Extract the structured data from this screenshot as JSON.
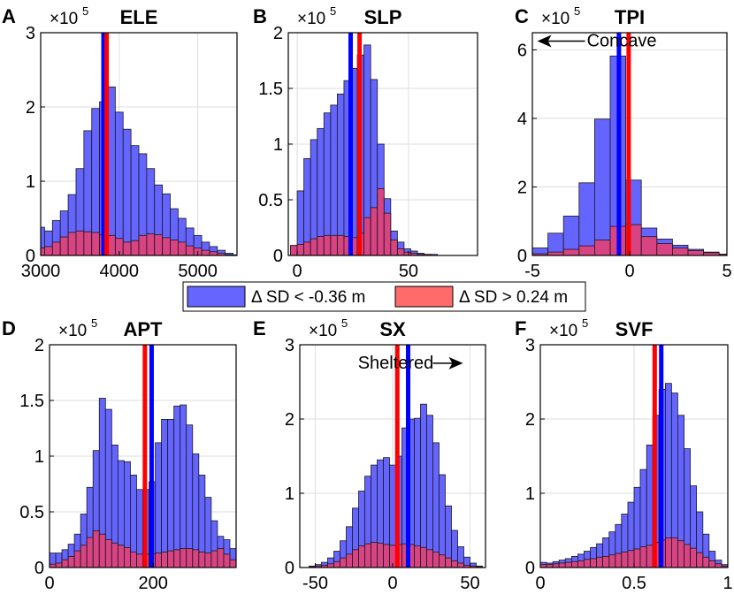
{
  "legend": {
    "entries": [
      {
        "label": "Δ SD < -0.36 m",
        "color": "#6666ff"
      },
      {
        "label": "Δ SD > 0.24 m",
        "color": "#ff6a6a"
      }
    ]
  },
  "colors": {
    "blue_fill": "#6464ff",
    "red_fill": "#f03c68",
    "blue_line": "#0000ff",
    "red_line": "#ff0000",
    "grid": "#dedede"
  },
  "chart_data": [
    {
      "type": "bar",
      "panel_letter": "A",
      "title": "ELE",
      "multiplier": "×10",
      "exponent": "5",
      "xlim": [
        3000,
        5500
      ],
      "ylim": [
        0,
        3
      ],
      "xticks": [
        3000,
        4000,
        5000
      ],
      "yticks": [
        0,
        1,
        2,
        3
      ],
      "xtick_labels": [
        "3000",
        "4000",
        "5000"
      ],
      "ytick_labels": [
        "0",
        "1",
        "2",
        "3"
      ],
      "bin_edges": [
        2950,
        3050,
        3150,
        3250,
        3350,
        3450,
        3550,
        3650,
        3750,
        3850,
        3950,
        4050,
        4150,
        4250,
        4350,
        4450,
        4550,
        4650,
        4750,
        4850,
        4950,
        5050,
        5150,
        5250,
        5350,
        5450,
        5550
      ],
      "series": [
        {
          "name": "Δ SD < -0.36 m",
          "values": [
            0.38,
            0.33,
            0.47,
            0.6,
            0.82,
            1.17,
            1.68,
            1.98,
            2.07,
            2.27,
            1.93,
            1.7,
            1.48,
            1.37,
            1.17,
            0.95,
            0.83,
            0.63,
            0.5,
            0.37,
            0.27,
            0.18,
            0.12,
            0.07,
            0.03,
            0.01
          ]
        },
        {
          "name": "Δ SD > 0.24 m",
          "values": [
            0.1,
            0.12,
            0.18,
            0.25,
            0.31,
            0.33,
            0.32,
            0.31,
            0.28,
            0.27,
            0.23,
            0.18,
            0.2,
            0.27,
            0.29,
            0.28,
            0.24,
            0.21,
            0.18,
            0.13,
            0.1,
            0.07,
            0.05,
            0.03,
            0.01,
            0.0
          ]
        }
      ],
      "lines": [
        {
          "x": 3800,
          "color": "blue"
        },
        {
          "x": 3840,
          "color": "red"
        }
      ],
      "annotation": null
    },
    {
      "type": "bar",
      "panel_letter": "B",
      "title": "SLP",
      "multiplier": "×10",
      "exponent": "5",
      "xlim": [
        -4,
        81
      ],
      "ylim": [
        0,
        2
      ],
      "xticks": [
        0,
        50
      ],
      "yticks": [
        0,
        0.5,
        1,
        1.5,
        2
      ],
      "xtick_labels": [
        "0",
        "50"
      ],
      "ytick_labels": [
        "0",
        "0.5",
        "1",
        "1.5",
        "2"
      ],
      "bin_edges": [
        -3,
        0,
        3,
        6,
        9,
        12,
        15,
        18,
        21,
        24,
        27,
        30,
        33,
        36,
        39,
        42,
        45,
        48,
        51,
        54,
        57,
        60,
        63,
        66,
        69,
        72
      ],
      "series": [
        {
          "name": "Δ SD < -0.36 m",
          "values": [
            0.09,
            0.58,
            0.87,
            1.04,
            1.14,
            1.28,
            1.35,
            1.45,
            1.57,
            1.68,
            1.8,
            1.89,
            1.58,
            1.0,
            0.51,
            0.22,
            0.12,
            0.06,
            0.04,
            0.02,
            0.01,
            0.01,
            0.0,
            0.0,
            0.0
          ]
        },
        {
          "name": "Δ SD > 0.24 m",
          "values": [
            0.09,
            0.1,
            0.12,
            0.15,
            0.17,
            0.18,
            0.18,
            0.18,
            0.17,
            0.16,
            0.2,
            0.34,
            0.43,
            0.6,
            0.38,
            0.14,
            0.06,
            0.03,
            0.02,
            0.01,
            0.01,
            0.0,
            0.0,
            0.0,
            0.0
          ]
        }
      ],
      "lines": [
        {
          "x": 24,
          "color": "blue"
        },
        {
          "x": 28,
          "color": "red"
        }
      ],
      "annotation": null
    },
    {
      "type": "bar",
      "panel_letter": "C",
      "title": "TPI",
      "multiplier": "×10",
      "exponent": "5",
      "xlim": [
        -5,
        5
      ],
      "ylim": [
        0,
        6.5
      ],
      "xticks": [
        -5,
        0,
        5
      ],
      "yticks": [
        0,
        2,
        4,
        6
      ],
      "xtick_labels": [
        "-5",
        "0",
        "5"
      ],
      "ytick_labels": [
        "0",
        "2",
        "4",
        "6"
      ],
      "bin_edges": [
        -5,
        -4.2,
        -3.4,
        -2.6,
        -1.8,
        -1.0,
        -0.2,
        0.6,
        1.4,
        2.2,
        3.0,
        3.8,
        4.6,
        5.0
      ],
      "series": [
        {
          "name": "Δ SD < -0.36 m",
          "values": [
            0.22,
            0.65,
            1.15,
            2.12,
            3.98,
            5.82,
            2.2,
            0.8,
            0.48,
            0.3,
            0.18,
            0.1,
            0.04
          ]
        },
        {
          "name": "Δ SD > 0.24 m",
          "values": [
            0.05,
            0.1,
            0.18,
            0.28,
            0.45,
            0.85,
            0.9,
            0.55,
            0.35,
            0.22,
            0.14,
            0.08,
            0.03
          ]
        }
      ],
      "lines": [
        {
          "x": -0.55,
          "color": "blue"
        },
        {
          "x": -0.05,
          "color": "red"
        }
      ],
      "annotation": {
        "text": "Concave",
        "arrow": "left",
        "x": -2.2,
        "y": 6.1
      }
    },
    {
      "type": "bar",
      "panel_letter": "D",
      "title": "APT",
      "multiplier": "×10",
      "exponent": "5",
      "xlim": [
        0,
        360
      ],
      "ylim": [
        0,
        2
      ],
      "xticks": [
        0,
        200
      ],
      "yticks": [
        0,
        0.5,
        1,
        1.5,
        2
      ],
      "xtick_labels": [
        "0",
        "200"
      ],
      "ytick_labels": [
        "0",
        "0.5",
        "1",
        "1.5",
        "2"
      ],
      "bin_edges": [
        0,
        12,
        24,
        36,
        48,
        60,
        72,
        84,
        96,
        108,
        120,
        132,
        144,
        156,
        168,
        180,
        192,
        204,
        216,
        228,
        240,
        252,
        264,
        276,
        288,
        300,
        312,
        324,
        336,
        348,
        360
      ],
      "series": [
        {
          "name": "Δ SD < -0.36 m",
          "values": [
            0.13,
            0.13,
            0.16,
            0.21,
            0.3,
            0.48,
            0.72,
            1.05,
            1.52,
            1.42,
            1.1,
            0.96,
            0.95,
            0.83,
            0.7,
            0.7,
            0.77,
            1.12,
            1.33,
            1.33,
            1.45,
            1.46,
            1.28,
            1.02,
            0.83,
            0.63,
            0.42,
            0.28,
            0.25,
            0.17
          ]
        },
        {
          "name": "Δ SD > 0.24 m",
          "values": [
            0.03,
            0.04,
            0.07,
            0.1,
            0.15,
            0.2,
            0.27,
            0.33,
            0.3,
            0.25,
            0.22,
            0.2,
            0.18,
            0.14,
            0.12,
            0.12,
            0.12,
            0.13,
            0.14,
            0.15,
            0.16,
            0.17,
            0.17,
            0.16,
            0.14,
            0.13,
            0.15,
            0.17,
            0.12,
            0.07
          ]
        }
      ],
      "lines": [
        {
          "x": 184,
          "color": "red"
        },
        {
          "x": 197,
          "color": "blue"
        }
      ],
      "annotation": null
    },
    {
      "type": "bar",
      "panel_letter": "E",
      "title": "SX",
      "multiplier": "×10",
      "exponent": "5",
      "xlim": [
        -60,
        60
      ],
      "ylim": [
        0,
        3
      ],
      "xticks": [
        -50,
        0,
        50
      ],
      "yticks": [
        0,
        1,
        2,
        3
      ],
      "xtick_labels": [
        "-50",
        "0",
        "50"
      ],
      "ytick_labels": [
        "0",
        "1",
        "2",
        "3"
      ],
      "bin_edges": [
        -54,
        -50,
        -46,
        -42,
        -38,
        -34,
        -30,
        -26,
        -22,
        -18,
        -14,
        -10,
        -6,
        -2,
        2,
        6,
        10,
        14,
        18,
        22,
        26,
        30,
        34,
        38,
        42,
        46,
        50,
        54,
        58
      ],
      "series": [
        {
          "name": "Δ SD < -0.36 m",
          "values": [
            0.02,
            0.04,
            0.07,
            0.13,
            0.22,
            0.36,
            0.55,
            0.8,
            1.03,
            1.23,
            1.38,
            1.45,
            1.48,
            1.38,
            1.5,
            1.88,
            2.0,
            2.01,
            2.2,
            2.05,
            1.68,
            1.25,
            0.83,
            0.5,
            0.28,
            0.14,
            0.06,
            0.02
          ]
        },
        {
          "name": "Δ SD > 0.24 m",
          "values": [
            0.01,
            0.02,
            0.03,
            0.05,
            0.08,
            0.13,
            0.18,
            0.24,
            0.29,
            0.32,
            0.34,
            0.33,
            0.31,
            0.3,
            0.31,
            0.32,
            0.31,
            0.29,
            0.27,
            0.24,
            0.21,
            0.17,
            0.13,
            0.09,
            0.06,
            0.03,
            0.02,
            0.01
          ]
        }
      ],
      "lines": [
        {
          "x": 3,
          "color": "red"
        },
        {
          "x": 10,
          "color": "blue"
        }
      ],
      "annotation": {
        "text": "Sheltered",
        "arrow": "right",
        "x": 2,
        "y": 2.68
      }
    },
    {
      "type": "bar",
      "panel_letter": "F",
      "title": "SVF",
      "multiplier": "×10",
      "exponent": "5",
      "xlim": [
        0,
        1
      ],
      "ylim": [
        0,
        3
      ],
      "xticks": [
        0,
        0.5,
        1
      ],
      "yticks": [
        0,
        1,
        2,
        3
      ],
      "xtick_labels": [
        "0",
        "0.5",
        "1"
      ],
      "ytick_labels": [
        "0",
        "1",
        "2",
        "3"
      ],
      "bin_edges": [
        0,
        0.033,
        0.067,
        0.1,
        0.133,
        0.167,
        0.2,
        0.233,
        0.267,
        0.3,
        0.333,
        0.367,
        0.4,
        0.433,
        0.467,
        0.5,
        0.533,
        0.567,
        0.6,
        0.633,
        0.667,
        0.7,
        0.733,
        0.767,
        0.8,
        0.833,
        0.867,
        0.9,
        0.933,
        0.967,
        1.0
      ],
      "series": [
        {
          "name": "Δ SD < -0.36 m",
          "values": [
            0.07,
            0.06,
            0.08,
            0.1,
            0.12,
            0.15,
            0.18,
            0.22,
            0.27,
            0.32,
            0.4,
            0.48,
            0.58,
            0.72,
            0.88,
            1.08,
            1.32,
            1.65,
            2.05,
            2.4,
            2.48,
            2.35,
            2.05,
            1.6,
            1.1,
            0.75,
            0.45,
            0.22,
            0.1,
            0.04
          ]
        },
        {
          "name": "Δ SD > 0.24 m",
          "values": [
            0.04,
            0.04,
            0.05,
            0.06,
            0.07,
            0.08,
            0.09,
            0.11,
            0.12,
            0.14,
            0.15,
            0.17,
            0.19,
            0.21,
            0.23,
            0.25,
            0.28,
            0.3,
            0.34,
            0.37,
            0.4,
            0.4,
            0.36,
            0.31,
            0.26,
            0.2,
            0.14,
            0.09,
            0.05,
            0.02
          ]
        }
      ],
      "lines": [
        {
          "x": 0.61,
          "color": "red"
        },
        {
          "x": 0.645,
          "color": "blue"
        }
      ],
      "annotation": null
    }
  ]
}
